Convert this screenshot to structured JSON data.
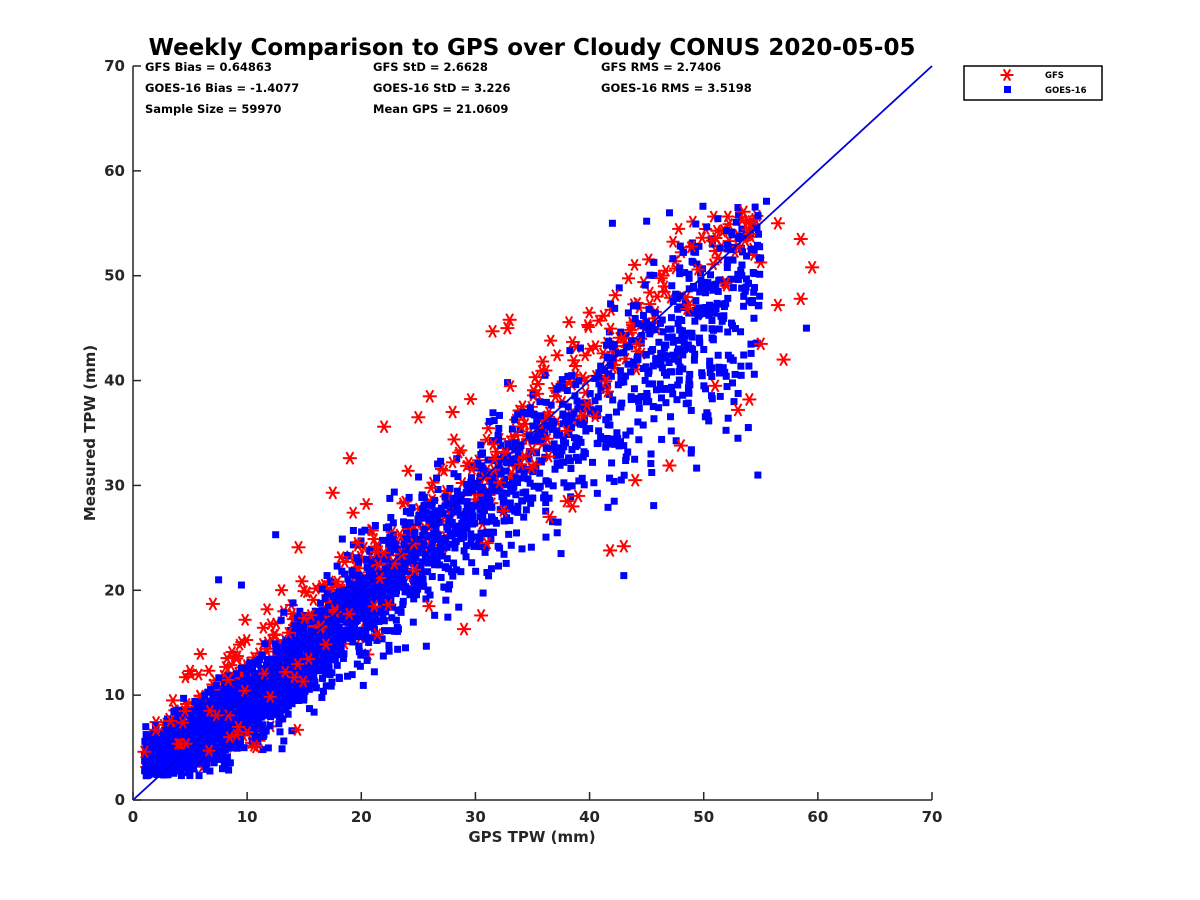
{
  "chart_data": {
    "type": "scatter",
    "title": "Weekly Comparison to GPS over Cloudy CONUS 2020-05-05",
    "xlabel": "GPS TPW (mm)",
    "ylabel": "Measured TPW (mm)",
    "xlim": [
      0,
      70
    ],
    "ylim": [
      0,
      70
    ],
    "xticks": [
      "0",
      "10",
      "20",
      "30",
      "40",
      "50",
      "60",
      "70"
    ],
    "yticks": [
      "0",
      "10",
      "20",
      "30",
      "40",
      "50",
      "60",
      "70"
    ],
    "grid": false,
    "legend_position": "outside-top-right",
    "reference_line": {
      "x": [
        0,
        70
      ],
      "y": [
        0,
        70
      ],
      "color": "#0000dd"
    },
    "stats": [
      "GFS Bias = 0.64863",
      "GFS StD = 2.6628",
      "GFS RMS = 2.7406",
      "GOES-16 Bias = -1.4077",
      "GOES-16 StD = 3.226",
      "GOES-16 RMS = 3.5198",
      "Sample Size = 59970",
      "Mean GPS = 21.0609"
    ],
    "series": [
      {
        "name": "GOES-16",
        "marker": "square",
        "color": "#0000ff",
        "sample_size": 59970,
        "bias": -1.4077,
        "std": 3.226,
        "rms": 3.5198,
        "approx_y_given_x": [
          [
            1,
            3.8
          ],
          [
            5,
            5.5
          ],
          [
            10,
            9
          ],
          [
            15,
            13.5
          ],
          [
            20,
            18.5
          ],
          [
            25,
            23.5
          ],
          [
            30,
            28
          ],
          [
            35,
            32.5
          ],
          [
            40,
            37
          ],
          [
            45,
            41.5
          ],
          [
            50,
            45.5
          ],
          [
            55,
            49.5
          ],
          [
            58,
            50
          ]
        ],
        "outliers": [
          [
            43,
            21.4
          ],
          [
            37.5,
            23.5
          ],
          [
            53,
            34.5
          ],
          [
            59,
            45
          ],
          [
            55.5,
            57.1
          ],
          [
            53,
            56.5
          ],
          [
            47,
            56
          ],
          [
            52,
            54.3
          ],
          [
            42,
            55
          ],
          [
            45,
            55.2
          ],
          [
            7.5,
            21
          ],
          [
            9.5,
            20.5
          ],
          [
            12.5,
            25.3
          ]
        ]
      },
      {
        "name": "GFS",
        "marker": "asterisk",
        "color": "#ff0000",
        "sample_size": 59970,
        "bias": 0.64863,
        "std": 2.6628,
        "rms": 2.7406,
        "outliers": [
          [
            41.8,
            23.8
          ],
          [
            43,
            24.2
          ],
          [
            44,
            30.5
          ],
          [
            47,
            31.9
          ],
          [
            48,
            33.8
          ],
          [
            53,
            37.2
          ],
          [
            54,
            38.2
          ],
          [
            57,
            42
          ],
          [
            58.5,
            47.8
          ],
          [
            59.5,
            50.8
          ],
          [
            58.5,
            53.5
          ],
          [
            56.5,
            55
          ],
          [
            53.5,
            56.1
          ],
          [
            31.5,
            44.7
          ],
          [
            33,
            45.8
          ],
          [
            32.8,
            45
          ],
          [
            28,
            37
          ],
          [
            26,
            38.5
          ],
          [
            25,
            36.5
          ],
          [
            22,
            35.6
          ],
          [
            19,
            32.6
          ],
          [
            17.5,
            29.3
          ],
          [
            14.5,
            24.1
          ],
          [
            7,
            18.7
          ],
          [
            5,
            12.3
          ],
          [
            3.5,
            9.5
          ],
          [
            2,
            6.7
          ],
          [
            1,
            4.6
          ],
          [
            29,
            16.3
          ],
          [
            30.5,
            17.6
          ],
          [
            31,
            24.5
          ],
          [
            36.5,
            27
          ],
          [
            38,
            28.5
          ],
          [
            39,
            29
          ],
          [
            38.5,
            28
          ],
          [
            51,
            39.5
          ],
          [
            55,
            43.5
          ],
          [
            56.5,
            47.2
          ]
        ]
      }
    ]
  }
}
